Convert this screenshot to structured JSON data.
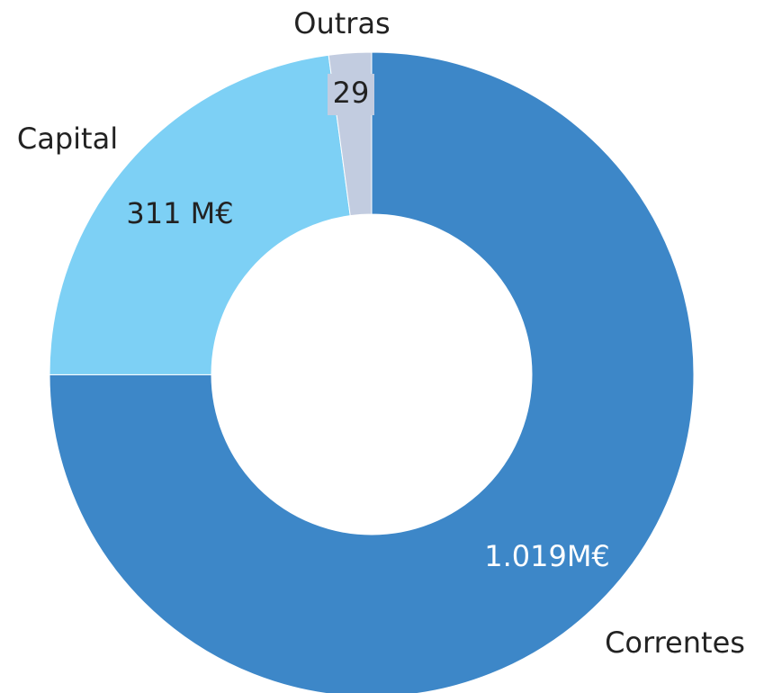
{
  "chart_data": {
    "type": "donut",
    "categories": [
      "Correntes",
      "Capital",
      "Outras"
    ],
    "values": [
      1019,
      311,
      29
    ],
    "value_labels": [
      "1.019M€",
      "311 M€",
      "29"
    ],
    "colors": [
      "#3d87c8",
      "#7dd0f5",
      "#c2cce0"
    ]
  }
}
